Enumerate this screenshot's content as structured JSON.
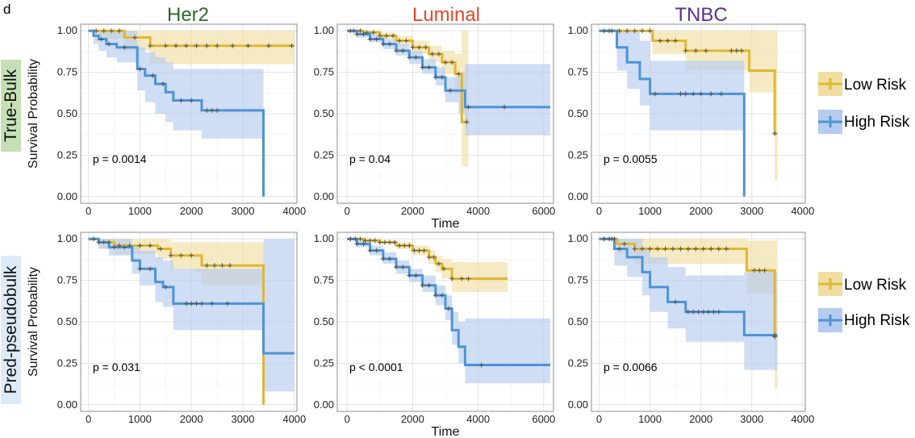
{
  "panel_letter": "d",
  "column_titles": [
    {
      "text": "Her2",
      "color": "#2e6a2e"
    },
    {
      "text": "Luminal",
      "color": "#e6472a"
    },
    {
      "text": "TNBC",
      "color": "#5b2f8f"
    }
  ],
  "row_titles": [
    {
      "text": "True-Bulk",
      "bg": "#c5e0b4"
    },
    {
      "text": "Pred-pseudobulk",
      "bg": "#dcebf7"
    }
  ],
  "legend": {
    "low": "Low Risk",
    "high": "High Risk"
  },
  "colors": {
    "low": "#e0b733",
    "high": "#4d94d4",
    "low_band": "#f0dfa3",
    "high_band": "#b5cbef",
    "censor": "#555555"
  },
  "chart_data": [
    {
      "type": "line",
      "id": "truebulk-her2",
      "ylabel": "Survival Probability",
      "xlabel": "",
      "xlim": [
        -150,
        4050
      ],
      "ylim": [
        -0.04,
        1.04
      ],
      "xticks": [
        0,
        1000,
        2000,
        3000,
        4000
      ],
      "yticks": [
        0,
        0.25,
        0.5,
        0.75,
        1.0
      ],
      "ytick_labels": [
        "0.00",
        "0.25",
        "0.50",
        "0.75",
        "1.00"
      ],
      "pvalue": "p = 0.0014",
      "series": [
        {
          "name": "Low Risk",
          "risk": "low",
          "x": [
            0,
            200,
            700,
            1200,
            4000
          ],
          "y": [
            1.0,
            1.0,
            0.96,
            0.91,
            0.91
          ],
          "lower": [
            1.0,
            0.95,
            0.88,
            0.8,
            0.8
          ],
          "upper": [
            1.0,
            1.0,
            1.0,
            1.0,
            1.0
          ],
          "censor_x": [
            150,
            300,
            450,
            600,
            900,
            1200,
            1500,
            1700,
            1900,
            2100,
            2300,
            2500,
            2800,
            3100,
            3500,
            3950
          ]
        },
        {
          "name": "High Risk",
          "risk": "high",
          "x": [
            0,
            100,
            200,
            350,
            550,
            950,
            1100,
            1300,
            1500,
            1650,
            2200,
            3400
          ],
          "y": [
            1.0,
            0.97,
            0.95,
            0.92,
            0.9,
            0.77,
            0.73,
            0.68,
            0.63,
            0.58,
            0.52,
            0.0
          ],
          "lower": [
            1.0,
            0.92,
            0.88,
            0.84,
            0.81,
            0.64,
            0.57,
            0.5,
            0.45,
            0.4,
            0.35,
            0.35
          ],
          "upper": [
            1.0,
            1.0,
            1.0,
            1.0,
            1.0,
            0.9,
            0.87,
            0.84,
            0.81,
            0.77,
            0.77,
            0.77
          ],
          "censor_x": [
            250,
            400,
            700,
            1000,
            1250,
            1450,
            1800,
            2000,
            2300,
            2400,
            2500
          ]
        }
      ]
    },
    {
      "type": "line",
      "id": "truebulk-luminal",
      "ylabel": "",
      "xlabel": "Time",
      "xlim": [
        -300,
        6300
      ],
      "ylim": [
        -0.04,
        1.04
      ],
      "xticks": [
        0,
        2000,
        4000,
        6000
      ],
      "yticks": [
        0,
        0.25,
        0.5,
        0.75,
        1.0
      ],
      "ytick_labels": [
        "0.00",
        "0.25",
        "0.50",
        "0.75",
        "1.00"
      ],
      "pvalue": "p = 0.04",
      "series": [
        {
          "name": "Low Risk",
          "risk": "low",
          "x": [
            0,
            500,
            1000,
            1500,
            2000,
            2500,
            2900,
            3300,
            3500,
            3700
          ],
          "y": [
            1.0,
            0.99,
            0.97,
            0.94,
            0.9,
            0.86,
            0.81,
            0.74,
            0.45,
            0.45
          ],
          "lower": [
            1.0,
            0.98,
            0.95,
            0.91,
            0.86,
            0.81,
            0.74,
            0.62,
            0.18,
            0.18
          ],
          "upper": [
            1.0,
            1.0,
            0.99,
            0.97,
            0.94,
            0.91,
            0.88,
            0.86,
            1.0,
            1.0
          ],
          "censor_x": [
            200,
            400,
            600,
            800,
            1000,
            1200,
            1400,
            1600,
            1800,
            2000,
            2200,
            2400,
            2600,
            2800,
            3000,
            3200,
            3400,
            3650
          ]
        },
        {
          "name": "High Risk",
          "risk": "high",
          "x": [
            0,
            300,
            700,
            1100,
            1500,
            1900,
            2300,
            2700,
            3000,
            3400,
            3600,
            6200
          ],
          "y": [
            1.0,
            0.98,
            0.95,
            0.92,
            0.88,
            0.84,
            0.78,
            0.72,
            0.64,
            0.64,
            0.54,
            0.54
          ],
          "lower": [
            1.0,
            0.96,
            0.93,
            0.89,
            0.85,
            0.8,
            0.74,
            0.67,
            0.57,
            0.5,
            0.37,
            0.37
          ],
          "upper": [
            1.0,
            1.0,
            0.98,
            0.95,
            0.92,
            0.88,
            0.83,
            0.78,
            0.72,
            0.75,
            0.8,
            0.8
          ],
          "censor_x": [
            100,
            300,
            500,
            700,
            900,
            1100,
            1300,
            1500,
            1700,
            1900,
            2100,
            2300,
            2500,
            2700,
            2900,
            3150,
            3700,
            4800
          ]
        }
      ]
    },
    {
      "type": "line",
      "id": "truebulk-tnbc",
      "ylabel": "",
      "xlabel": "",
      "xlim": [
        -150,
        4050
      ],
      "ylim": [
        -0.04,
        1.04
      ],
      "xticks": [
        0,
        1000,
        2000,
        3000,
        4000
      ],
      "yticks": [
        0,
        0.25,
        0.5,
        0.75,
        1.0
      ],
      "ytick_labels": [
        "0.00",
        "0.25",
        "0.50",
        "0.75",
        "1.00"
      ],
      "pvalue": "p = 0.0055",
      "series": [
        {
          "name": "Low Risk",
          "risk": "low",
          "x": [
            0,
            1050,
            1700,
            2950,
            3450,
            3500
          ],
          "y": [
            1.0,
            0.94,
            0.88,
            0.76,
            0.38,
            0.38
          ],
          "lower": [
            1.0,
            0.86,
            0.76,
            0.63,
            0.1,
            0.1
          ],
          "upper": [
            1.0,
            1.0,
            1.0,
            1.0,
            1.0,
            1.0
          ],
          "censor_x": [
            100,
            250,
            400,
            550,
            700,
            850,
            1000,
            1200,
            1350,
            1500,
            1700,
            1900,
            2100,
            2600,
            2700,
            2800,
            3450
          ]
        },
        {
          "name": "High Risk",
          "risk": "high",
          "x": [
            0,
            350,
            550,
            800,
            1000,
            1600,
            2850
          ],
          "y": [
            1.0,
            0.9,
            0.81,
            0.71,
            0.62,
            0.62,
            0.0
          ],
          "lower": [
            1.0,
            0.76,
            0.65,
            0.55,
            0.4,
            0.4,
            0.4
          ],
          "upper": [
            1.0,
            1.0,
            1.0,
            0.94,
            0.82,
            0.82,
            0.82
          ],
          "censor_x": [
            200,
            1100,
            1600,
            1700,
            1850,
            2000,
            2200,
            2400
          ]
        }
      ]
    },
    {
      "type": "line",
      "id": "predpseudo-her2",
      "ylabel": "Survival Probability",
      "xlabel": "",
      "xlim": [
        -150,
        4050
      ],
      "ylim": [
        -0.04,
        1.04
      ],
      "xticks": [
        0,
        1000,
        2000,
        3000,
        4000
      ],
      "yticks": [
        0,
        0.25,
        0.5,
        0.75,
        1.0
      ],
      "ytick_labels": [
        "0.00",
        "0.25",
        "0.50",
        "0.75",
        "1.00"
      ],
      "pvalue": "p = 0.031",
      "series": [
        {
          "name": "Low Risk",
          "risk": "low",
          "x": [
            0,
            200,
            500,
            1350,
            1600,
            2050,
            2200,
            3400
          ],
          "y": [
            1.0,
            0.98,
            0.96,
            0.94,
            0.9,
            0.9,
            0.84,
            0.0
          ],
          "lower": [
            1.0,
            0.94,
            0.91,
            0.88,
            0.82,
            0.8,
            0.72,
            0.72
          ],
          "upper": [
            1.0,
            1.0,
            1.0,
            1.0,
            0.98,
            0.98,
            0.98,
            0.98
          ],
          "censor_x": [
            200,
            400,
            600,
            800,
            1000,
            1200,
            1400,
            1600,
            1800,
            2000,
            2300,
            2450,
            2600,
            2750
          ]
        },
        {
          "name": "High Risk",
          "risk": "high",
          "x": [
            0,
            200,
            400,
            850,
            1000,
            1300,
            1450,
            1650,
            3400,
            4000
          ],
          "y": [
            1.0,
            0.98,
            0.95,
            0.87,
            0.82,
            0.74,
            0.71,
            0.61,
            0.31,
            0.31
          ],
          "lower": [
            1.0,
            0.94,
            0.9,
            0.79,
            0.72,
            0.62,
            0.59,
            0.45,
            0.08,
            0.08
          ],
          "upper": [
            1.0,
            1.0,
            1.0,
            0.96,
            0.93,
            0.89,
            0.87,
            0.82,
            1.0,
            1.0
          ],
          "censor_x": [
            100,
            300,
            500,
            700,
            1000,
            1200,
            1500,
            1900,
            2000,
            2100,
            2200,
            2400,
            2700
          ]
        }
      ]
    },
    {
      "type": "line",
      "id": "predpseudo-luminal",
      "ylabel": "",
      "xlabel": "Time",
      "xlim": [
        -300,
        6300
      ],
      "ylim": [
        -0.04,
        1.04
      ],
      "xticks": [
        0,
        2000,
        4000,
        6000
      ],
      "yticks": [
        0,
        0.25,
        0.5,
        0.75,
        1.0
      ],
      "ytick_labels": [
        "0.00",
        "0.25",
        "0.50",
        "0.75",
        "1.00"
      ],
      "pvalue": "p < 0.0001",
      "series": [
        {
          "name": "Low Risk",
          "risk": "low",
          "x": [
            0,
            500,
            1000,
            1500,
            2000,
            2500,
            2700,
            2900,
            3200,
            4900
          ],
          "y": [
            1.0,
            0.99,
            0.98,
            0.96,
            0.93,
            0.89,
            0.85,
            0.82,
            0.76,
            0.76
          ],
          "lower": [
            1.0,
            0.98,
            0.97,
            0.94,
            0.9,
            0.85,
            0.8,
            0.76,
            0.68,
            0.68
          ],
          "upper": [
            1.0,
            1.0,
            0.99,
            0.98,
            0.96,
            0.93,
            0.9,
            0.88,
            0.86,
            0.86
          ],
          "censor_x": [
            100,
            250,
            400,
            550,
            700,
            850,
            1000,
            1150,
            1300,
            1450,
            1600,
            1750,
            1900,
            2050,
            2200,
            2350,
            2500,
            2650,
            2800,
            2950,
            3200,
            3500,
            3700
          ]
        },
        {
          "name": "High Risk",
          "risk": "high",
          "x": [
            0,
            300,
            700,
            1100,
            1500,
            1900,
            2300,
            2700,
            3000,
            3200,
            3400,
            3600,
            6200
          ],
          "y": [
            1.0,
            0.97,
            0.93,
            0.88,
            0.83,
            0.78,
            0.72,
            0.66,
            0.58,
            0.45,
            0.35,
            0.24,
            0.24
          ],
          "lower": [
            1.0,
            0.95,
            0.9,
            0.85,
            0.79,
            0.74,
            0.68,
            0.6,
            0.51,
            0.36,
            0.25,
            0.13,
            0.13
          ],
          "upper": [
            1.0,
            0.99,
            0.96,
            0.92,
            0.87,
            0.82,
            0.78,
            0.72,
            0.66,
            0.56,
            0.5,
            0.52,
            0.52
          ],
          "censor_x": [
            100,
            300,
            500,
            700,
            900,
            1100,
            1300,
            1500,
            1700,
            1900,
            2100,
            2300,
            2500,
            2700,
            2900,
            3100,
            4100
          ]
        }
      ]
    },
    {
      "type": "line",
      "id": "predpseudo-tnbc",
      "ylabel": "",
      "xlabel": "",
      "xlim": [
        -150,
        4050
      ],
      "ylim": [
        -0.04,
        1.04
      ],
      "xticks": [
        0,
        1000,
        2000,
        3000,
        4000
      ],
      "yticks": [
        0,
        0.25,
        0.5,
        0.75,
        1.0
      ],
      "ytick_labels": [
        "0.00",
        "0.25",
        "0.50",
        "0.75",
        "1.00"
      ],
      "pvalue": "p = 0.0066",
      "series": [
        {
          "name": "Low Risk",
          "risk": "low",
          "x": [
            0,
            350,
            700,
            2900,
            3450,
            3500
          ],
          "y": [
            1.0,
            0.97,
            0.94,
            0.81,
            0.41,
            0.41
          ],
          "lower": [
            1.0,
            0.91,
            0.85,
            0.67,
            0.1,
            0.1
          ],
          "upper": [
            1.0,
            1.0,
            1.0,
            0.99,
            0.99,
            0.99
          ],
          "censor_x": [
            100,
            200,
            300,
            500,
            700,
            850,
            1000,
            1150,
            1300,
            1450,
            1600,
            1750,
            1900,
            2050,
            2200,
            2350,
            2500,
            3050,
            3150,
            3250,
            3450
          ]
        },
        {
          "name": "High Risk",
          "risk": "high",
          "x": [
            0,
            300,
            550,
            850,
            1000,
            1350,
            1700,
            2850,
            3500
          ],
          "y": [
            1.0,
            0.94,
            0.89,
            0.8,
            0.71,
            0.62,
            0.56,
            0.42,
            0.42
          ],
          "lower": [
            1.0,
            0.84,
            0.77,
            0.66,
            0.56,
            0.46,
            0.38,
            0.21,
            0.21
          ],
          "upper": [
            1.0,
            1.0,
            1.0,
            0.95,
            0.89,
            0.83,
            0.78,
            0.8,
            0.8
          ],
          "censor_x": [
            100,
            250,
            400,
            1500,
            1750,
            1850,
            1950,
            2050,
            2150,
            2250,
            2350,
            3450
          ]
        }
      ]
    }
  ]
}
